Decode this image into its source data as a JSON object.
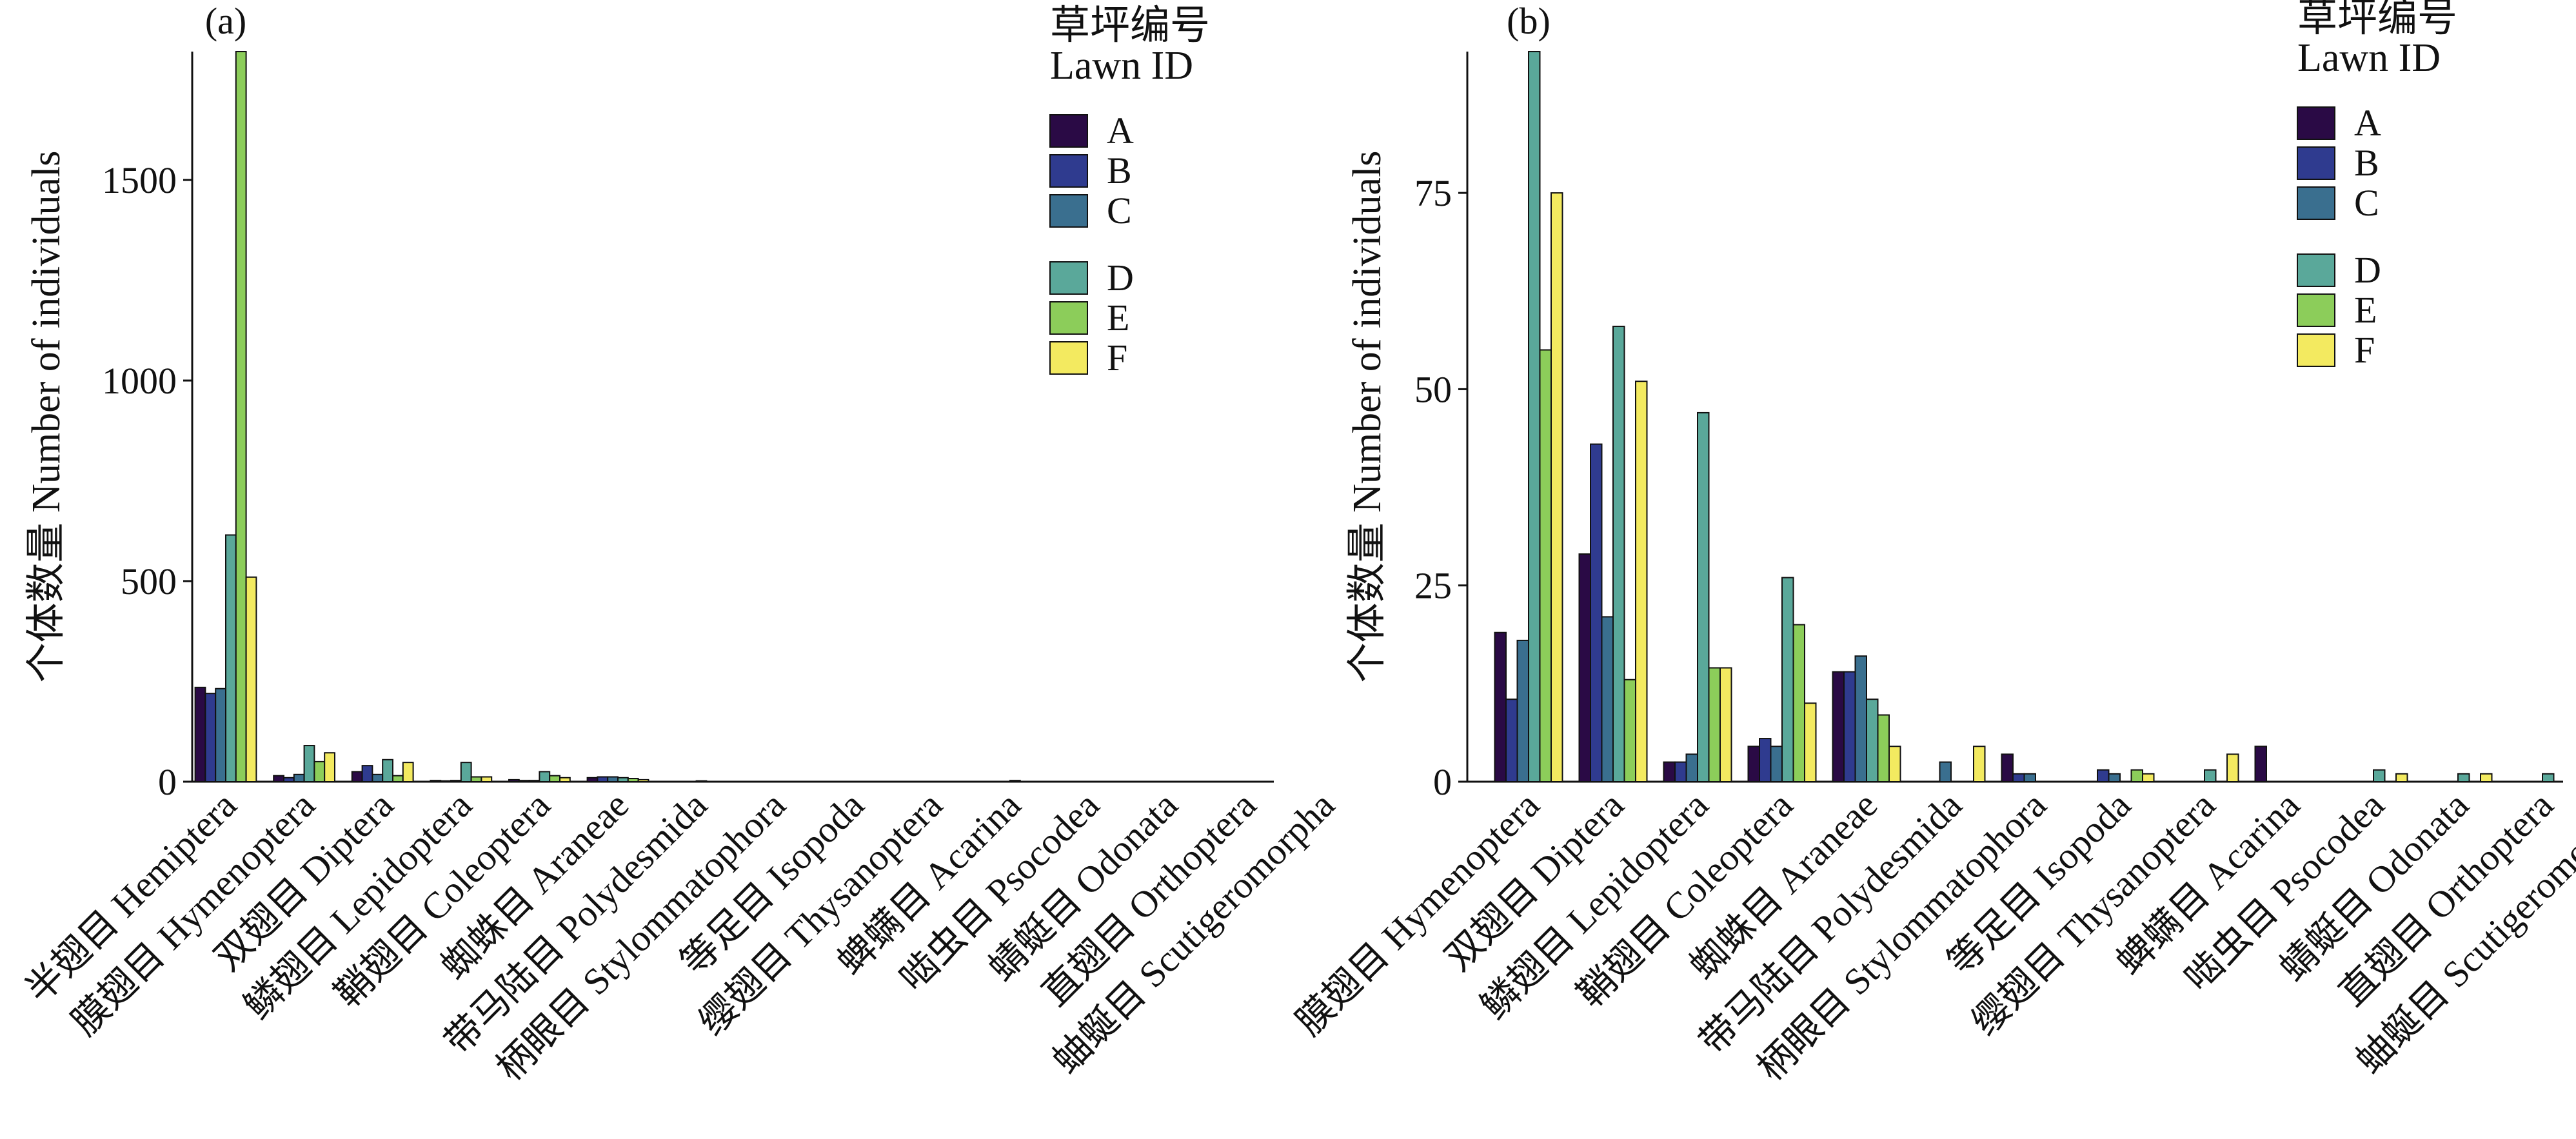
{
  "legend": {
    "title_zh": "草坪编号",
    "title_en": "Lawn ID",
    "entries": [
      {
        "label": "A",
        "color": "#2a0a45"
      },
      {
        "label": "B",
        "color": "#2f3b8f"
      },
      {
        "label": "C",
        "color": "#3a6f8f"
      },
      {
        "label": "D",
        "color": "#5aa89a"
      },
      {
        "label": "E",
        "color": "#8ccd5a"
      },
      {
        "label": "F",
        "color": "#f3ea60"
      }
    ]
  },
  "chart_data": [
    {
      "type": "bar",
      "panel_label": "(a)",
      "ylabel": "个体数量 Number of individuals",
      "ylim": [
        0,
        1820
      ],
      "yticks": [
        0,
        500,
        1000,
        1500
      ],
      "categories": [
        "半翅目 Hemiptera",
        "膜翅目 Hymenoptera",
        "双翅目 Diptera",
        "鳞翅目 Lepidoptera",
        "鞘翅目 Coleoptera",
        "蜘蛛目 Araneae",
        "带马陆目 Polydesmida",
        "柄眼目 Stylommatophora",
        "等足目 Isopoda",
        "缨翅目 Thysanoptera",
        "蜱螨目 Acarina",
        "啮虫目 Psocodea",
        "蜻蜓目 Odonata",
        "直翅目 Orthoptera",
        "蚰蜒目 Scutigeromorpha"
      ],
      "series": [
        {
          "name": "A",
          "values": [
            235,
            15,
            25,
            3,
            5,
            10,
            0,
            0,
            0,
            0,
            0,
            0,
            0,
            0,
            0
          ]
        },
        {
          "name": "B",
          "values": [
            220,
            10,
            40,
            2,
            3,
            12,
            0,
            0,
            0,
            0,
            0,
            0,
            0,
            0,
            0
          ]
        },
        {
          "name": "C",
          "values": [
            232,
            18,
            18,
            3,
            3,
            12,
            0,
            0,
            0,
            0,
            0,
            0,
            0,
            0,
            0
          ]
        },
        {
          "name": "D",
          "values": [
            615,
            90,
            55,
            48,
            25,
            10,
            2,
            0,
            0,
            0,
            3,
            0,
            0,
            0,
            0
          ]
        },
        {
          "name": "E",
          "values": [
            1820,
            50,
            15,
            12,
            15,
            8,
            0,
            0,
            0,
            0,
            0,
            0,
            0,
            0,
            0
          ]
        },
        {
          "name": "F",
          "values": [
            510,
            72,
            48,
            12,
            10,
            5,
            0,
            0,
            0,
            0,
            0,
            0,
            0,
            0,
            0
          ]
        }
      ]
    },
    {
      "type": "bar",
      "panel_label": "(b)",
      "ylabel": "个体数量 Number of individuals",
      "ylim": [
        0,
        93
      ],
      "yticks": [
        0,
        25,
        50,
        75
      ],
      "categories": [
        "膜翅目 Hymenoptera",
        "双翅目 Diptera",
        "鳞翅目 Lepidoptera",
        "鞘翅目 Coleoptera",
        "蜘蛛目 Araneae",
        "带马陆目 Polydesmida",
        "柄眼目 Stylommatophora",
        "等足目 Isopoda",
        "缨翅目 Thysanoptera",
        "蜱螨目 Acarina",
        "啮虫目 Psocodea",
        "蜻蜓目 Odonata",
        "直翅目 Orthoptera",
        "蚰蜒目 Scutigeromorpha"
      ],
      "series": [
        {
          "name": "A",
          "values": [
            19,
            29,
            2.5,
            4.5,
            14,
            0,
            3.5,
            0,
            0,
            4.5,
            0,
            0,
            0,
            0
          ]
        },
        {
          "name": "B",
          "values": [
            10.5,
            43,
            2.5,
            5.5,
            14,
            0,
            1,
            1.5,
            0,
            0,
            0,
            0,
            0,
            0
          ]
        },
        {
          "name": "C",
          "values": [
            18,
            21,
            3.5,
            4.5,
            16,
            2.5,
            1,
            1,
            0,
            0,
            0,
            0,
            0,
            0
          ]
        },
        {
          "name": "D",
          "values": [
            93,
            58,
            47,
            26,
            10.5,
            0,
            0,
            0,
            1.5,
            0,
            1.5,
            1,
            1,
            0
          ]
        },
        {
          "name": "E",
          "values": [
            55,
            13,
            14.5,
            20,
            8.5,
            0,
            0,
            1.5,
            0,
            0,
            0,
            0,
            0,
            1
          ]
        },
        {
          "name": "F",
          "values": [
            75,
            51,
            14.5,
            10,
            4.5,
            4.5,
            0,
            1,
            3.5,
            0,
            1,
            1,
            0,
            0
          ]
        }
      ]
    }
  ]
}
